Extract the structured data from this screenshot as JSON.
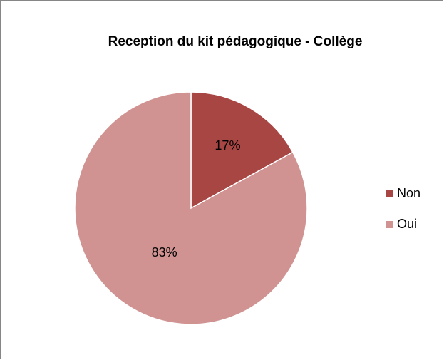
{
  "chart_data": {
    "type": "pie",
    "title": "Reception du kit pédagogique - Collège",
    "categories": [
      "Non",
      "Oui"
    ],
    "values": [
      17,
      83
    ],
    "value_labels": [
      "17%",
      "83%"
    ],
    "colors": [
      "#a84644",
      "#d09392"
    ],
    "legend": "right"
  }
}
